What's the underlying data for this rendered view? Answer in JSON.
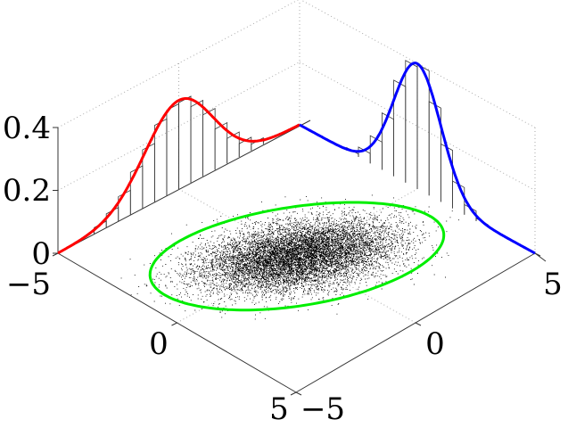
{
  "chart_data": {
    "type": "scatter",
    "title": "",
    "description_kind": "3d-scatter-with-marginals",
    "mean": [
      0,
      0
    ],
    "covariance": [
      [
        1,
        0.6
      ],
      [
        0.6,
        2
      ]
    ],
    "ellipse_sigma": 3,
    "x_axis": {
      "range": [
        -5,
        5
      ],
      "ticks": [
        -5,
        0,
        5
      ],
      "tick_labels": [
        "−5",
        "0",
        "5"
      ]
    },
    "y_axis": {
      "range": [
        -5,
        5
      ],
      "ticks": [
        -5,
        0,
        5
      ],
      "tick_labels": [
        "−5",
        "0",
        "5"
      ]
    },
    "z_axis": {
      "range": [
        0,
        0.4
      ],
      "ticks": [
        0,
        0.2,
        0.4
      ],
      "tick_labels": [
        "0",
        "0.2",
        "0.4"
      ]
    },
    "histogram_bin_width": 0.5,
    "colors": {
      "x_marginal": "#0000ff",
      "y_marginal": "#ff0000",
      "ellipse": "#00ee00",
      "points": "#000000",
      "histogram": "#000000",
      "grid": "#aaaaaa"
    }
  }
}
